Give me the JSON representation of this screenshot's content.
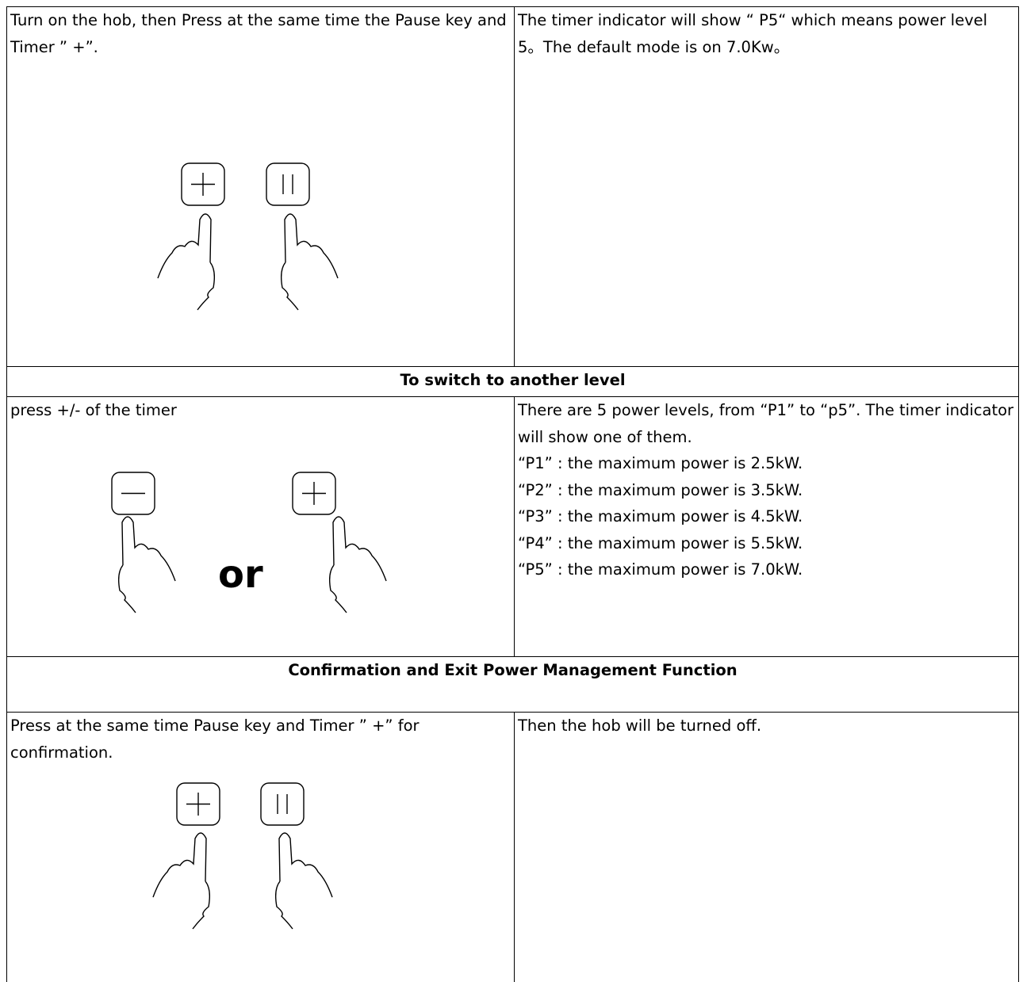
{
  "table": {
    "rows": [
      {
        "left": {
          "text": "Turn on the hob, then Press at the same time the Pause key and Timer ” +”."
        },
        "right": {
          "text": "The timer indicator will show “ P5“ which means power level 5。The default mode is on 7.0Kw。"
        }
      },
      {
        "heading": "To switch to another level"
      },
      {
        "left": {
          "text": "press +/- of the timer",
          "separator": "or"
        },
        "right": {
          "lines": [
            "There are 5 power levels, from “P1” to “p5”. The timer indicator will show one of them.",
            "“P1” : the maximum power is 2.5kW.",
            "“P2” : the maximum power is 3.5kW.",
            "“P3” : the maximum power is 4.5kW.",
            "“P4” : the maximum power is 5.5kW.",
            "“P5” : the maximum power is 7.0kW."
          ]
        }
      },
      {
        "heading": "Confirmation and Exit Power Management Function"
      },
      {
        "left": {
          "text": "Press at the same time Pause key and Timer ” +” for confirmation."
        },
        "right": {
          "text": "Then the hob will be turned off."
        }
      }
    ]
  }
}
